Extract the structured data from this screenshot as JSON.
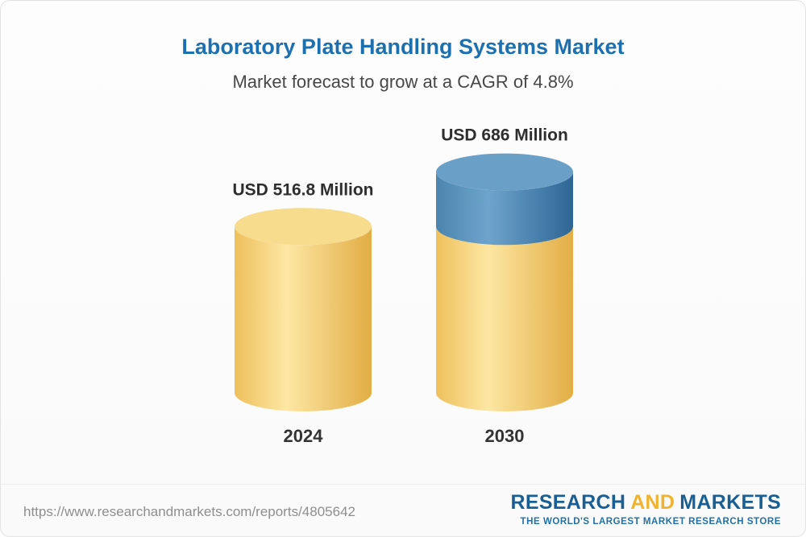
{
  "page": {
    "background": "#fbfbfb",
    "border_color": "#e2e2e2"
  },
  "header": {
    "title": "Laboratory Plate Handling Systems Market",
    "title_color": "#1d70b0",
    "subtitle": "Market forecast to grow at a CAGR of 4.8%",
    "subtitle_color": "#474747"
  },
  "chart_data": {
    "type": "bar",
    "variant": "3d-cylinder",
    "title": "Laboratory Plate Handling Systems Market",
    "subtitle": "Market forecast to grow at a CAGR of 4.8%",
    "unit": "USD Million",
    "cagr": "4.8%",
    "categories": [
      "2024",
      "2030"
    ],
    "values": [
      516.8,
      686
    ],
    "value_labels": [
      "USD 516.8 Million",
      "USD 686 Million"
    ],
    "legend": "none",
    "grid": false,
    "bars": [
      {
        "category": "2024",
        "label": "USD 516.8 Million",
        "segments": [
          {
            "value": 516.8,
            "color": "yellow"
          }
        ]
      },
      {
        "category": "2030",
        "label": "USD 686 Million",
        "segments": [
          {
            "value": 516.8,
            "color": "yellow"
          },
          {
            "value": 169.2,
            "color": "blue"
          }
        ]
      }
    ],
    "colors": {
      "yellow": {
        "left": "#eec05c",
        "mid": "#fde7a3",
        "right": "#e2ad45",
        "cap": "#f8dc8e"
      },
      "blue": {
        "left": "#4d84ae",
        "mid": "#6ea4cc",
        "right": "#2e6594",
        "cap": "#6aa0c8"
      }
    },
    "label_color": "#2e2e2e",
    "axis_label_color": "#333333"
  },
  "footer": {
    "url": "https://www.researchandmarkets.com/reports/4805642",
    "url_color": "#8e8e8e",
    "logo": {
      "research": "RESEARCH",
      "and": "AND",
      "markets": "MARKETS",
      "tagline": "THE WORLD'S LARGEST MARKET RESEARCH STORE",
      "blue": "#1a5f93",
      "gold": "#f1b32e",
      "tagline_color": "#2171a6"
    }
  }
}
